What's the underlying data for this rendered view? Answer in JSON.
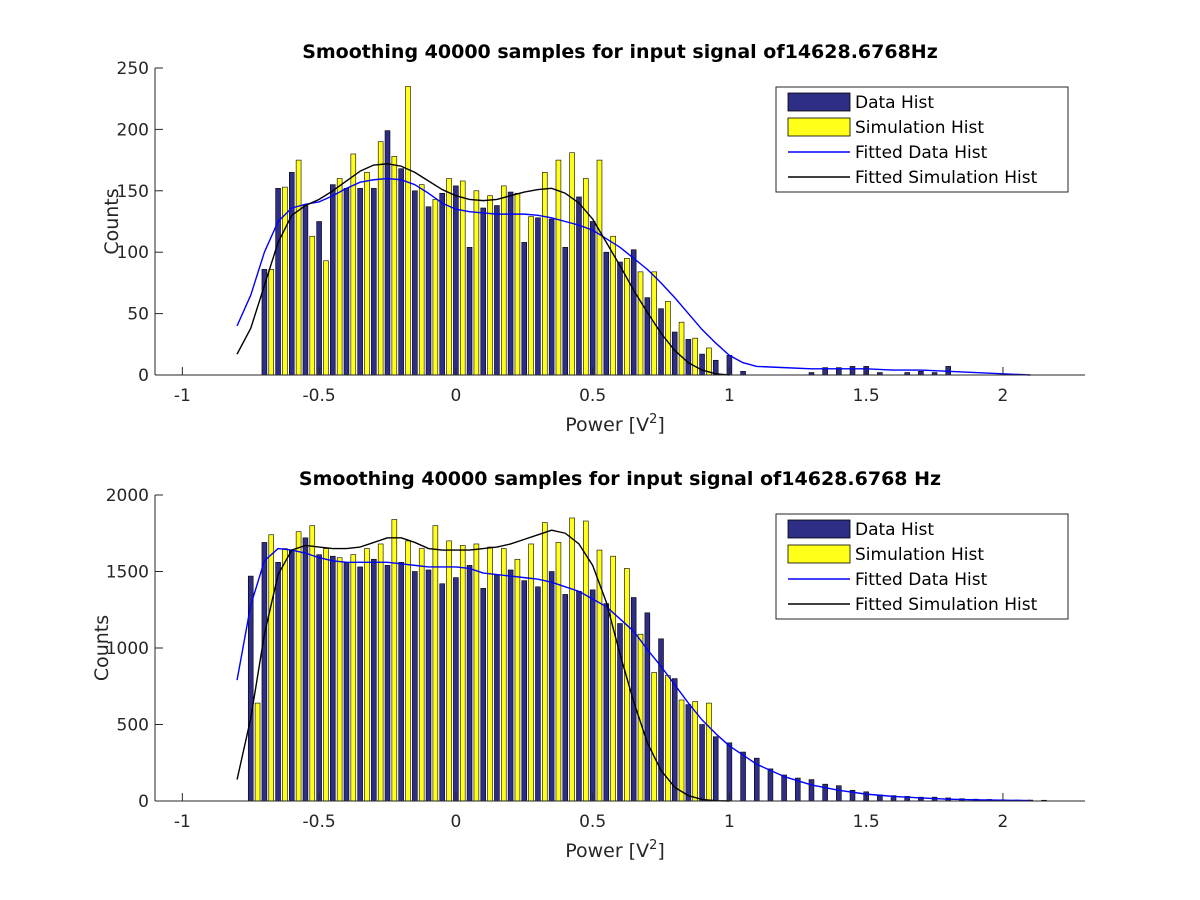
{
  "chart_data": [
    {
      "type": "bar",
      "title": "Smoothing 40000 samples for input signal of14628.6768Hz",
      "xlabel": "Power [V",
      "xlabel_sup": "2",
      "xlabel_end": "]",
      "ylabel": "Counts",
      "xlim": [
        -1.1,
        2.3
      ],
      "ylim": [
        0,
        250
      ],
      "xticks": [
        -1,
        -0.5,
        0,
        0.5,
        1,
        1.5,
        2
      ],
      "xtick_labels": [
        "-1",
        "-0.5",
        "0",
        "0.5",
        "1",
        "1.5",
        "2"
      ],
      "yticks": [
        0,
        50,
        100,
        150,
        200,
        250
      ],
      "ytick_labels": [
        "0",
        "50",
        "100",
        "150",
        "200",
        "250"
      ],
      "grid": false,
      "legend_position": "top-right",
      "legend": [
        "Data Hist",
        "Simulation Hist",
        "Fitted Data Hist",
        "Fitted Simulation Hist"
      ],
      "colors": {
        "data": "#2e2e86",
        "simulation": "#ffff1a",
        "fit_data": "#0000ff",
        "fit_sim": "#000000",
        "bar_edge": "#000000"
      },
      "bar_width": 0.018,
      "data_hist": {
        "x": [
          -0.7,
          -0.65,
          -0.6,
          -0.55,
          -0.5,
          -0.45,
          -0.4,
          -0.35,
          -0.3,
          -0.25,
          -0.2,
          -0.15,
          -0.1,
          -0.05,
          0.0,
          0.05,
          0.1,
          0.15,
          0.2,
          0.25,
          0.3,
          0.35,
          0.4,
          0.45,
          0.5,
          0.55,
          0.6,
          0.65,
          0.7,
          0.75,
          0.8,
          0.85,
          0.9,
          0.95,
          1.0,
          1.05,
          1.3,
          1.35,
          1.4,
          1.45,
          1.5,
          1.55,
          1.65,
          1.7,
          1.75,
          1.8
        ],
        "y": [
          86,
          152,
          165,
          138,
          125,
          155,
          152,
          152,
          152,
          199,
          168,
          150,
          137,
          148,
          154,
          104,
          136,
          138,
          149,
          108,
          128,
          127,
          104,
          145,
          125,
          100,
          92,
          102,
          63,
          54,
          35,
          29,
          17,
          12,
          16,
          3,
          2,
          6,
          6,
          7,
          7,
          2,
          2,
          3,
          2,
          7
        ]
      },
      "sim_hist": {
        "x": [
          -0.675,
          -0.625,
          -0.575,
          -0.525,
          -0.475,
          -0.425,
          -0.375,
          -0.325,
          -0.275,
          -0.225,
          -0.175,
          -0.125,
          -0.075,
          -0.025,
          0.025,
          0.075,
          0.125,
          0.175,
          0.225,
          0.275,
          0.325,
          0.375,
          0.425,
          0.475,
          0.525,
          0.575,
          0.625,
          0.675,
          0.725,
          0.775,
          0.825,
          0.875,
          0.925
        ],
        "y": [
          86,
          153,
          175,
          113,
          93,
          160,
          180,
          165,
          190,
          178,
          235,
          155,
          143,
          160,
          158,
          150,
          146,
          154,
          148,
          129,
          165,
          175,
          181,
          160,
          175,
          113,
          95,
          84,
          84,
          60,
          43,
          30,
          22
        ]
      },
      "fit_data": {
        "x": [
          -0.8,
          -0.75,
          -0.7,
          -0.65,
          -0.6,
          -0.55,
          -0.5,
          -0.45,
          -0.4,
          -0.35,
          -0.3,
          -0.25,
          -0.2,
          -0.15,
          -0.1,
          -0.05,
          0.0,
          0.05,
          0.1,
          0.15,
          0.2,
          0.25,
          0.3,
          0.35,
          0.4,
          0.45,
          0.5,
          0.55,
          0.6,
          0.65,
          0.7,
          0.75,
          0.8,
          0.85,
          0.9,
          0.95,
          1.0,
          1.05,
          1.1,
          1.2,
          1.3,
          1.4,
          1.5,
          1.6,
          1.7,
          1.8,
          1.9,
          2.0,
          2.1
        ],
        "y": [
          40,
          65,
          100,
          125,
          136,
          139,
          141,
          146,
          152,
          157,
          159,
          160,
          159,
          155,
          148,
          140,
          135,
          133,
          132,
          131,
          131,
          131,
          130,
          128,
          125,
          122,
          118,
          111,
          104,
          95,
          86,
          75,
          63,
          50,
          37,
          26,
          16,
          10,
          7,
          6,
          5,
          5,
          5,
          4,
          4,
          3,
          2,
          1,
          0
        ]
      },
      "fit_sim": {
        "x": [
          -0.8,
          -0.75,
          -0.7,
          -0.65,
          -0.6,
          -0.55,
          -0.5,
          -0.45,
          -0.4,
          -0.35,
          -0.3,
          -0.25,
          -0.2,
          -0.15,
          -0.1,
          -0.05,
          0.0,
          0.05,
          0.1,
          0.15,
          0.2,
          0.25,
          0.3,
          0.35,
          0.4,
          0.45,
          0.5,
          0.55,
          0.6,
          0.65,
          0.7,
          0.75,
          0.8,
          0.85,
          0.9,
          0.95,
          1.0
        ],
        "y": [
          17,
          38,
          73,
          108,
          130,
          138,
          143,
          150,
          158,
          166,
          171,
          172,
          170,
          165,
          158,
          151,
          146,
          143,
          142,
          143,
          146,
          149,
          151,
          152,
          148,
          140,
          127,
          108,
          89,
          69,
          51,
          34,
          20,
          10,
          4,
          1,
          0
        ]
      }
    },
    {
      "type": "bar",
      "title": "Smoothing 40000 samples for input signal of14628.6768 Hz",
      "xlabel": "Power [V",
      "xlabel_sup": "2",
      "xlabel_end": "]",
      "ylabel": "Counts",
      "xlim": [
        -1.1,
        2.3
      ],
      "ylim": [
        0,
        2000
      ],
      "xticks": [
        -1,
        -0.5,
        0,
        0.5,
        1,
        1.5,
        2
      ],
      "xtick_labels": [
        "-1",
        "-0.5",
        "0",
        "0.5",
        "1",
        "1.5",
        "2"
      ],
      "yticks": [
        0,
        500,
        1000,
        1500,
        2000
      ],
      "ytick_labels": [
        "0",
        "500",
        "1000",
        "1500",
        "2000"
      ],
      "grid": false,
      "legend_position": "top-right",
      "legend": [
        "Data Hist",
        "Simulation Hist",
        "Fitted Data Hist",
        "Fitted Simulation Hist"
      ],
      "colors": {
        "data": "#2e2e86",
        "simulation": "#ffff1a",
        "fit_data": "#0000ff",
        "fit_sim": "#000000",
        "bar_edge": "#000000"
      },
      "bar_width": 0.018,
      "data_hist": {
        "x": [
          -0.75,
          -0.7,
          -0.65,
          -0.6,
          -0.55,
          -0.5,
          -0.45,
          -0.4,
          -0.35,
          -0.3,
          -0.25,
          -0.2,
          -0.15,
          -0.1,
          -0.05,
          0.0,
          0.05,
          0.1,
          0.15,
          0.2,
          0.25,
          0.3,
          0.35,
          0.4,
          0.45,
          0.5,
          0.55,
          0.6,
          0.65,
          0.7,
          0.75,
          0.8,
          0.85,
          0.9,
          0.95,
          1.0,
          1.05,
          1.1,
          1.15,
          1.2,
          1.25,
          1.3,
          1.35,
          1.4,
          1.45,
          1.5,
          1.55,
          1.6,
          1.65,
          1.7,
          1.75,
          1.8,
          1.85,
          1.9,
          1.95,
          2.0,
          2.05,
          2.1,
          2.15
        ],
        "y": [
          1470,
          1690,
          1560,
          1640,
          1720,
          1610,
          1600,
          1560,
          1530,
          1580,
          1540,
          1560,
          1500,
          1510,
          1420,
          1460,
          1540,
          1390,
          1480,
          1510,
          1440,
          1400,
          1500,
          1350,
          1370,
          1380,
          1290,
          1160,
          1330,
          1230,
          1060,
          800,
          630,
          500,
          420,
          380,
          320,
          280,
          210,
          170,
          150,
          140,
          110,
          100,
          70,
          60,
          40,
          35,
          30,
          25,
          25,
          20,
          15,
          12,
          10,
          8,
          6,
          6,
          5
        ]
      },
      "sim_hist": {
        "x": [
          -0.725,
          -0.675,
          -0.625,
          -0.575,
          -0.525,
          -0.475,
          -0.425,
          -0.375,
          -0.325,
          -0.275,
          -0.225,
          -0.175,
          -0.125,
          -0.075,
          -0.025,
          0.025,
          0.075,
          0.125,
          0.175,
          0.225,
          0.275,
          0.325,
          0.375,
          0.425,
          0.475,
          0.525,
          0.575,
          0.625,
          0.675,
          0.725,
          0.775,
          0.825,
          0.875,
          0.925
        ],
        "y": [
          640,
          1740,
          1650,
          1760,
          1800,
          1650,
          1590,
          1610,
          1650,
          1680,
          1840,
          1700,
          1650,
          1800,
          1700,
          1670,
          1680,
          1660,
          1650,
          1580,
          1680,
          1820,
          1690,
          1850,
          1830,
          1640,
          1600,
          1520,
          1090,
          840,
          820,
          660,
          650,
          640
        ]
      },
      "fit_data": {
        "x": [
          -0.8,
          -0.75,
          -0.7,
          -0.65,
          -0.6,
          -0.55,
          -0.5,
          -0.45,
          -0.4,
          -0.35,
          -0.3,
          -0.25,
          -0.2,
          -0.15,
          -0.1,
          -0.05,
          0.0,
          0.05,
          0.1,
          0.15,
          0.2,
          0.25,
          0.3,
          0.35,
          0.4,
          0.45,
          0.5,
          0.55,
          0.6,
          0.65,
          0.7,
          0.75,
          0.8,
          0.85,
          0.9,
          0.95,
          1.0,
          1.1,
          1.2,
          1.3,
          1.4,
          1.5,
          1.6,
          1.7,
          1.8,
          1.9,
          2.0,
          2.1
        ],
        "y": [
          790,
          1280,
          1570,
          1650,
          1640,
          1620,
          1590,
          1570,
          1560,
          1560,
          1560,
          1560,
          1550,
          1540,
          1530,
          1530,
          1530,
          1520,
          1490,
          1480,
          1470,
          1460,
          1450,
          1430,
          1400,
          1370,
          1320,
          1270,
          1190,
          1110,
          990,
          880,
          760,
          640,
          530,
          440,
          360,
          240,
          160,
          105,
          70,
          45,
          30,
          20,
          12,
          8,
          5,
          3
        ]
      },
      "fit_sim": {
        "x": [
          -0.8,
          -0.75,
          -0.7,
          -0.65,
          -0.6,
          -0.55,
          -0.5,
          -0.45,
          -0.4,
          -0.35,
          -0.3,
          -0.25,
          -0.2,
          -0.15,
          -0.1,
          -0.05,
          0.0,
          0.05,
          0.1,
          0.15,
          0.2,
          0.25,
          0.3,
          0.35,
          0.4,
          0.45,
          0.5,
          0.55,
          0.6,
          0.65,
          0.7,
          0.75,
          0.8,
          0.85,
          0.9,
          0.95,
          1.0
        ],
        "y": [
          140,
          540,
          1090,
          1480,
          1640,
          1670,
          1660,
          1650,
          1650,
          1660,
          1690,
          1720,
          1720,
          1690,
          1650,
          1640,
          1640,
          1640,
          1650,
          1660,
          1680,
          1710,
          1740,
          1770,
          1750,
          1680,
          1540,
          1300,
          960,
          650,
          380,
          200,
          90,
          35,
          10,
          2,
          0
        ]
      }
    }
  ]
}
